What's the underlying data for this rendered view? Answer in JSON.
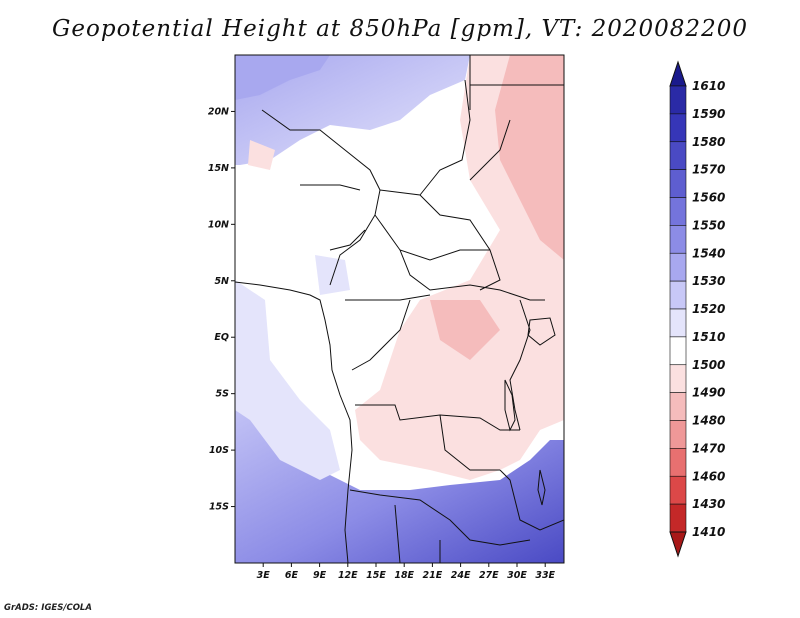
{
  "title": "Geopotential Height at 850hPa [gpm], VT: 2020082200",
  "footer": "GrADS: IGES/COLA",
  "map": {
    "variable": "Geopotential Height",
    "level": "850hPa",
    "units": "gpm",
    "valid_time": "2020082200",
    "lat_range": [
      -20,
      25
    ],
    "lon_range": [
      0,
      35
    ],
    "y_ticks": [
      {
        "lat": 20,
        "label": "20N"
      },
      {
        "lat": 15,
        "label": "15N"
      },
      {
        "lat": 10,
        "label": "10N"
      },
      {
        "lat": 5,
        "label": "5N"
      },
      {
        "lat": 0,
        "label": "EQ"
      },
      {
        "lat": -5,
        "label": "5S"
      },
      {
        "lat": -10,
        "label": "10S"
      },
      {
        "lat": -15,
        "label": "15S"
      }
    ],
    "x_ticks": [
      {
        "lon": 3,
        "label": "3E"
      },
      {
        "lon": 6,
        "label": "6E"
      },
      {
        "lon": 9,
        "label": "9E"
      },
      {
        "lon": 12,
        "label": "12E"
      },
      {
        "lon": 15,
        "label": "15E"
      },
      {
        "lon": 18,
        "label": "18E"
      },
      {
        "lon": 21,
        "label": "21E"
      },
      {
        "lon": 24,
        "label": "24E"
      },
      {
        "lon": 27,
        "label": "27E"
      },
      {
        "lon": 30,
        "label": "30E"
      },
      {
        "lon": 33,
        "label": "33E"
      }
    ]
  },
  "colorbar": {
    "levels": [
      "1610",
      "1590",
      "1580",
      "1570",
      "1560",
      "1550",
      "1540",
      "1530",
      "1520",
      "1510",
      "1500",
      "1490",
      "1480",
      "1470",
      "1460",
      "1430",
      "1410"
    ],
    "colors": [
      "#1a1a8c",
      "#2a2aa6",
      "#3636b8",
      "#4a4ac4",
      "#5e5ed0",
      "#7474dc",
      "#8c8ce6",
      "#a8a8ef",
      "#c8c8f7",
      "#e4e4fb",
      "#ffffff",
      "#fbe0e0",
      "#f5bcbc",
      "#ef9898",
      "#e87070",
      "#dc4848",
      "#c42828",
      "#a81818"
    ]
  }
}
